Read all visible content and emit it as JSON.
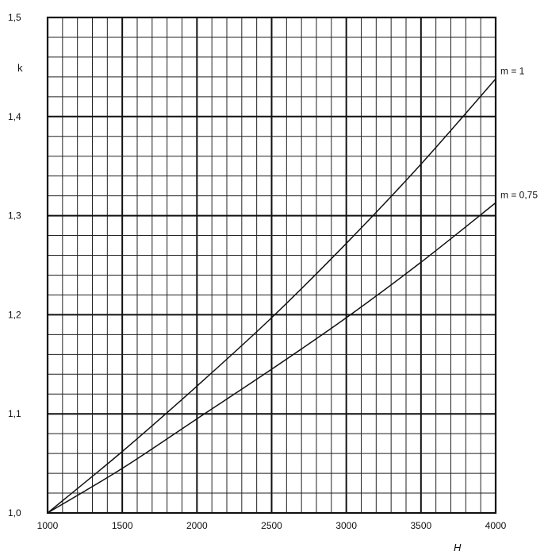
{
  "chart_data": {
    "type": "line",
    "title": "",
    "xlabel": "H",
    "ylabel": "k",
    "xlim": [
      1000,
      4000
    ],
    "ylim": [
      1.0,
      1.5
    ],
    "grid": true,
    "x_ticks": [
      1000,
      1500,
      2000,
      2500,
      3000,
      3500,
      4000
    ],
    "x_tick_labels": [
      "1000",
      "1500",
      "2000",
      "2500",
      "3000",
      "3500",
      "4000"
    ],
    "y_ticks": [
      1.0,
      1.1,
      1.2,
      1.3,
      1.4,
      1.5
    ],
    "y_tick_labels": [
      "1,0",
      "1,1",
      "1,2",
      "1,3",
      "1,4",
      "1,5"
    ],
    "x_minor_step": 100,
    "y_minor_step": 0.02,
    "series": [
      {
        "name": "m = 1",
        "x": [
          1000,
          1500,
          2000,
          2500,
          3000,
          3500,
          4000
        ],
        "y": [
          1.0,
          1.062,
          1.128,
          1.197,
          1.272,
          1.352,
          1.438
        ]
      },
      {
        "name": "m = 0,75",
        "x": [
          1000,
          1500,
          2000,
          2500,
          3000,
          3500,
          4000
        ],
        "y": [
          1.0,
          1.045,
          1.095,
          1.145,
          1.197,
          1.253,
          1.313
        ]
      }
    ]
  }
}
